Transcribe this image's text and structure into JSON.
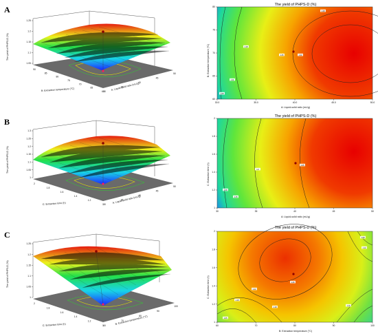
{
  "panels": [
    {
      "letter": "A",
      "surface": {
        "z_label": "The yield of PHPS-D (%)",
        "x_label": "B: Extraction temperature (°C)",
        "y_label": "A: Liquid-solid ratio (mL/g)",
        "z_ticks": [
          "1.05",
          "1.1",
          "1.15",
          "1.2",
          "1.25"
        ],
        "x_ticks": [
          "90",
          "85",
          "80",
          "75",
          "70",
          "65",
          "60"
        ],
        "y_ticks": [
          "30",
          "35",
          "40",
          "45",
          "50"
        ]
      },
      "contour": {
        "title": "The yield of PHPS-D (%)",
        "x_label": "A: Liquid-solid ratio (mL/g)",
        "y_label": "B: Extraction temperature (°C)",
        "x_ticks": [
          "30.0",
          "35.0",
          "40.0",
          "45.0",
          "50.0"
        ],
        "y_ticks": [
          "60",
          "65",
          "70",
          "75",
          "80"
        ],
        "badges": [
          "1.18",
          "1.25",
          "1.22",
          "1.11",
          "1.28",
          "1.08"
        ]
      }
    },
    {
      "letter": "B",
      "surface": {
        "z_label": "The yield of PHPS-D (%)",
        "x_label": "C: Extraction time (h)",
        "y_label": "A: Liquid-solid ratio (mL/g)",
        "z_ticks": [
          "1",
          "1.05",
          "1.1",
          "1.15",
          "1.2",
          "1.25",
          "1.3"
        ],
        "x_ticks": [
          "2",
          "1.8",
          "1.6",
          "1.4",
          "1.2",
          "1"
        ],
        "y_ticks": [
          "30",
          "35",
          "40",
          "45",
          "50"
        ]
      },
      "contour": {
        "title": "The yield of PHPS-D (%)",
        "x_label": "A: Liquid-solid ratio (mL/g)",
        "y_label": "C: Extraction time (h)",
        "x_ticks": [
          "30",
          "35",
          "40",
          "45",
          "50"
        ],
        "y_ticks": [
          "1",
          "1.2",
          "1.4",
          "1.6",
          "1.8",
          "2"
        ],
        "badges": [
          "1.25",
          "1.2",
          "1.08",
          "1.15"
        ]
      }
    },
    {
      "letter": "C",
      "surface": {
        "z_label": "The yield of PHPS-D (%)",
        "x_label": "C: Extraction time (h)",
        "y_label": "B: Extraction temperature (°C)",
        "z_ticks": [
          "1",
          "1.05",
          "1.1",
          "1.15",
          "1.2",
          "1.25"
        ],
        "x_ticks": [
          "2",
          "1.8",
          "1.6",
          "1.4",
          "1.2",
          "1"
        ],
        "y_ticks": [
          "60",
          "70",
          "80",
          "90",
          "100"
        ]
      },
      "contour": {
        "title": "The yield of PHPS-D (%)",
        "x_label": "B: Extraction temperature (°C)",
        "y_label": "C: Extraction time (h)",
        "x_ticks": [
          "60",
          "70",
          "80",
          "90",
          "100"
        ],
        "y_ticks": [
          "1",
          "1.2",
          "1.4",
          "1.6",
          "1.8",
          "2"
        ],
        "badges": [
          "1.25",
          "1.22",
          "1.18",
          "1.15",
          "1.12",
          "1.08",
          "1.05",
          "1.10"
        ]
      }
    }
  ],
  "chart_data": [
    {
      "type": "surface",
      "panel": "A",
      "series": [
        {
          "name": "",
          "x_range": [
            60,
            90
          ],
          "y_range": [
            30,
            50
          ],
          "z_range": [
            1.05,
            1.25
          ]
        }
      ]
    },
    {
      "type": "heatmap",
      "panel": "A",
      "xlim": [
        30,
        50
      ],
      "ylim": [
        60,
        80
      ],
      "optimum": {
        "x": 45,
        "y": 70
      }
    },
    {
      "type": "surface",
      "panel": "B",
      "series": [
        {
          "name": "",
          "x_range": [
            1,
            2
          ],
          "y_range": [
            30,
            50
          ],
          "z_range": [
            1,
            1.3
          ]
        }
      ]
    },
    {
      "type": "heatmap",
      "panel": "B",
      "xlim": [
        30,
        50
      ],
      "ylim": [
        1,
        2
      ],
      "optimum": {
        "x": 45,
        "y": 1.5
      }
    },
    {
      "type": "surface",
      "panel": "C",
      "series": [
        {
          "name": "",
          "x_range": [
            1,
            2
          ],
          "y_range": [
            60,
            100
          ],
          "z_range": [
            1,
            1.25
          ]
        }
      ]
    },
    {
      "type": "heatmap",
      "panel": "C",
      "xlim": [
        60,
        100
      ],
      "ylim": [
        1,
        2
      ],
      "optimum": {
        "x": 80,
        "y": 1.5
      }
    }
  ]
}
